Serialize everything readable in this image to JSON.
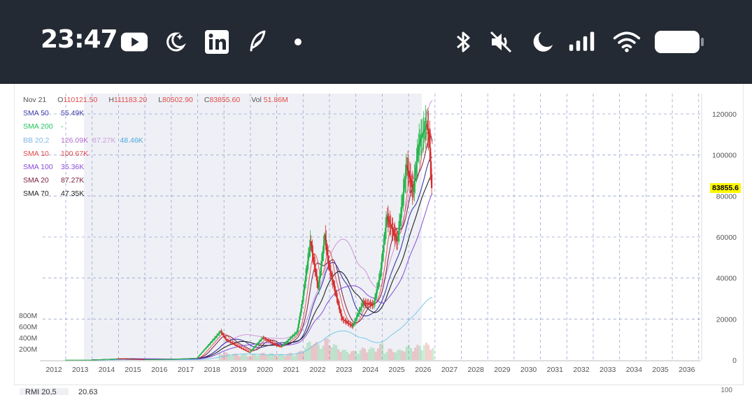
{
  "status_bar": {
    "time": "23:47",
    "left_icons": [
      "youtube-icon",
      "weather-night-icon",
      "linkedin-icon",
      "feather-icon",
      "dot-icon"
    ],
    "right_icons": [
      "bluetooth-icon",
      "mute-icon",
      "moon-icon",
      "signal-icon",
      "wifi-icon",
      "battery-icon"
    ]
  },
  "legend": {
    "ohlc": {
      "date": "Nov 21",
      "open_label": "O",
      "open": "110121.50",
      "high_label": "H",
      "high": "111183.20",
      "low_label": "L",
      "low": "80502.90",
      "close_label": "C",
      "close": "83855.60",
      "vol_label": "Vol",
      "vol": "51.86M"
    },
    "indicators": [
      {
        "label": "SMA 50",
        "value": "55.49K",
        "color": "#3a3aa8"
      },
      {
        "label": "SMA 200",
        "value": "-",
        "color": "#22c55e"
      },
      {
        "label": "BB 20,2",
        "value": "126.09K",
        "value2": "87.27K",
        "value3": "48.46K",
        "color": "#7fb6e6"
      },
      {
        "label": "SMA 10",
        "value": "100.67K",
        "color": "#e24b4b"
      },
      {
        "label": "SMA 100",
        "value": "35.36K",
        "color": "#8a4bd8"
      },
      {
        "label": "SMA 20",
        "value": "87.27K",
        "color": "#7a1f3d"
      },
      {
        "label": "SMA 70",
        "value": "47.35K",
        "color": "#222222"
      }
    ]
  },
  "last_price_tag": "83855.6",
  "bottom_panel": {
    "tab": "RMI 20,5",
    "value": "20.63",
    "axis_value": "100"
  },
  "chart_data": {
    "type": "candlestick",
    "x_ticks": [
      "2012",
      "2013",
      "2014",
      "2015",
      "2016",
      "2017",
      "2018",
      "2019",
      "2020",
      "2021",
      "2022",
      "2023",
      "2024",
      "2025",
      "2026",
      "2027",
      "2028",
      "2029",
      "2030",
      "2031",
      "2032",
      "2033",
      "2034",
      "2035",
      "2036"
    ],
    "y_ticks": [
      "120000",
      "100000",
      "80000",
      "60000",
      "40000",
      "20000",
      "0"
    ],
    "ylim": [
      0,
      120000
    ],
    "volume_ticks": [
      "800M",
      "600M",
      "400M",
      "200M"
    ],
    "price_series_approx": [
      {
        "year": 2013.0,
        "close": 100
      },
      {
        "year": 2014.0,
        "close": 700
      },
      {
        "year": 2015.0,
        "close": 300
      },
      {
        "year": 2016.0,
        "close": 430
      },
      {
        "year": 2017.0,
        "close": 1000
      },
      {
        "year": 2017.9,
        "close": 14000
      },
      {
        "year": 2018.1,
        "close": 10000
      },
      {
        "year": 2018.5,
        "close": 7000
      },
      {
        "year": 2019.0,
        "close": 3700
      },
      {
        "year": 2019.5,
        "close": 11000
      },
      {
        "year": 2020.0,
        "close": 7200
      },
      {
        "year": 2020.2,
        "close": 6500
      },
      {
        "year": 2020.8,
        "close": 13800
      },
      {
        "year": 2021.0,
        "close": 29000
      },
      {
        "year": 2021.3,
        "close": 58000
      },
      {
        "year": 2021.6,
        "close": 35000
      },
      {
        "year": 2021.85,
        "close": 61000
      },
      {
        "year": 2022.0,
        "close": 46000
      },
      {
        "year": 2022.5,
        "close": 20000
      },
      {
        "year": 2022.9,
        "close": 16500
      },
      {
        "year": 2023.3,
        "close": 28000
      },
      {
        "year": 2023.7,
        "close": 27000
      },
      {
        "year": 2023.95,
        "close": 42000
      },
      {
        "year": 2024.2,
        "close": 70000
      },
      {
        "year": 2024.6,
        "close": 58000
      },
      {
        "year": 2024.95,
        "close": 95000
      },
      {
        "year": 2025.2,
        "close": 82000
      },
      {
        "year": 2025.4,
        "close": 105000
      },
      {
        "year": 2025.7,
        "close": 115000
      },
      {
        "year": 2025.8,
        "close": 110000
      },
      {
        "year": 2025.9,
        "close": 83855.6
      }
    ]
  }
}
